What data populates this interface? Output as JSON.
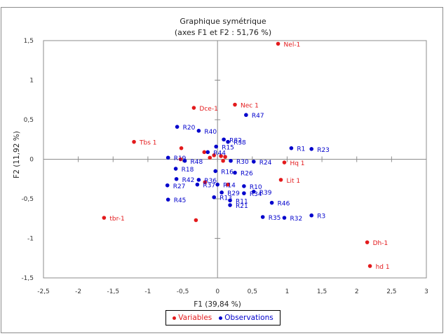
{
  "chart_data": {
    "type": "scatter",
    "title": "Graphique symétrique",
    "subtitle": "(axes F1 et F2 : 51,76 %)",
    "xlabel": "F1 (39,84 %)",
    "ylabel": "F2 (11,92 %)",
    "xlim": [
      -2.5,
      3
    ],
    "ylim": [
      -1.5,
      1.5
    ],
    "xticks": [
      -2.5,
      -2,
      -1.5,
      -1,
      -0.5,
      0,
      0.5,
      1,
      1.5,
      2,
      2.5,
      3
    ],
    "xtick_labels": [
      "-2,5",
      "-2",
      "-1,5",
      "-1",
      "-0,5",
      "0",
      "0,5",
      "1",
      "1,5",
      "2",
      "2,5",
      "3"
    ],
    "yticks": [
      -1.5,
      -1,
      -0.5,
      0,
      0.5,
      1,
      1.5
    ],
    "ytick_labels": [
      "-1,5",
      "-1",
      "-0,5",
      "0",
      "0,5",
      "1",
      "1,5"
    ],
    "grid": false,
    "legend_position": "bottom",
    "series": [
      {
        "name": "Variables",
        "color": "#e31a1c",
        "points": [
          {
            "label": "Nel-1",
            "x": 0.87,
            "y": 1.46
          },
          {
            "label": "Nec 1",
            "x": 0.25,
            "y": 0.69
          },
          {
            "label": "Dce-1",
            "x": -0.34,
            "y": 0.65
          },
          {
            "label": "Tbs 1",
            "x": -1.2,
            "y": 0.22
          },
          {
            "label": "Hq 1",
            "x": 0.96,
            "y": -0.04
          },
          {
            "label": "Lit 1",
            "x": 0.91,
            "y": -0.26
          },
          {
            "label": "tbr-1",
            "x": -1.63,
            "y": -0.74
          },
          {
            "label": "Dh-1",
            "x": 2.15,
            "y": -1.05
          },
          {
            "label": "hd 1",
            "x": 2.19,
            "y": -1.35
          },
          {
            "label": "",
            "x": -0.52,
            "y": 0.14
          },
          {
            "label": "",
            "x": -0.53,
            "y": 0.0
          },
          {
            "label": "",
            "x": -0.19,
            "y": 0.09
          },
          {
            "label": "",
            "x": -0.05,
            "y": 0.05
          },
          {
            "label": "",
            "x": 0.05,
            "y": 0.04
          },
          {
            "label": "",
            "x": 0.11,
            "y": 0.03
          },
          {
            "label": "",
            "x": -0.11,
            "y": 0.02
          },
          {
            "label": "",
            "x": 0.08,
            "y": -0.02
          },
          {
            "label": "",
            "x": -0.18,
            "y": -0.29
          },
          {
            "label": "",
            "x": 0.15,
            "y": -0.32
          },
          {
            "label": "",
            "x": -0.31,
            "y": -0.77
          }
        ]
      },
      {
        "name": "Observations",
        "color": "#0000cc",
        "points": [
          {
            "label": "R47",
            "x": 0.41,
            "y": 0.56
          },
          {
            "label": "R20",
            "x": -0.58,
            "y": 0.41
          },
          {
            "label": "R40",
            "x": -0.27,
            "y": 0.36
          },
          {
            "label": "R82",
            "x": 0.09,
            "y": 0.25
          },
          {
            "label": "R38",
            "x": 0.15,
            "y": 0.22
          },
          {
            "label": "R15",
            "x": -0.02,
            "y": 0.16
          },
          {
            "label": "R1",
            "x": 1.06,
            "y": 0.14
          },
          {
            "label": "R23",
            "x": 1.35,
            "y": 0.13
          },
          {
            "label": "R44",
            "x": -0.14,
            "y": 0.09
          },
          {
            "label": "R19",
            "x": -0.71,
            "y": 0.02
          },
          {
            "label": "R48",
            "x": -0.47,
            "y": -0.02
          },
          {
            "label": "R24",
            "x": 0.52,
            "y": -0.03
          },
          {
            "label": "R30",
            "x": 0.19,
            "y": -0.02
          },
          {
            "label": "R16",
            "x": -0.03,
            "y": -0.15
          },
          {
            "label": "R26",
            "x": 0.25,
            "y": -0.17
          },
          {
            "label": "R18",
            "x": -0.6,
            "y": -0.12
          },
          {
            "label": "R42",
            "x": -0.59,
            "y": -0.25
          },
          {
            "label": "R36",
            "x": -0.27,
            "y": -0.26
          },
          {
            "label": "R37",
            "x": -0.29,
            "y": -0.32
          },
          {
            "label": "R27",
            "x": -0.72,
            "y": -0.33
          },
          {
            "label": "R14",
            "x": 0.0,
            "y": -0.32
          },
          {
            "label": "R10",
            "x": 0.38,
            "y": -0.34
          },
          {
            "label": "R29",
            "x": 0.06,
            "y": -0.42
          },
          {
            "label": "R34",
            "x": 0.38,
            "y": -0.43
          },
          {
            "label": "R39",
            "x": 0.52,
            "y": -0.41
          },
          {
            "label": "R13",
            "x": -0.05,
            "y": -0.48
          },
          {
            "label": "R11",
            "x": 0.18,
            "y": -0.52
          },
          {
            "label": "R21",
            "x": 0.18,
            "y": -0.58
          },
          {
            "label": "R45",
            "x": -0.71,
            "y": -0.51
          },
          {
            "label": "R46",
            "x": 0.78,
            "y": -0.55
          },
          {
            "label": "R35",
            "x": 0.65,
            "y": -0.73
          },
          {
            "label": "R32",
            "x": 0.96,
            "y": -0.74
          },
          {
            "label": "R3",
            "x": 1.35,
            "y": -0.71
          }
        ]
      }
    ]
  },
  "legend": {
    "variables_label": "Variables",
    "observations_label": "Observations"
  }
}
